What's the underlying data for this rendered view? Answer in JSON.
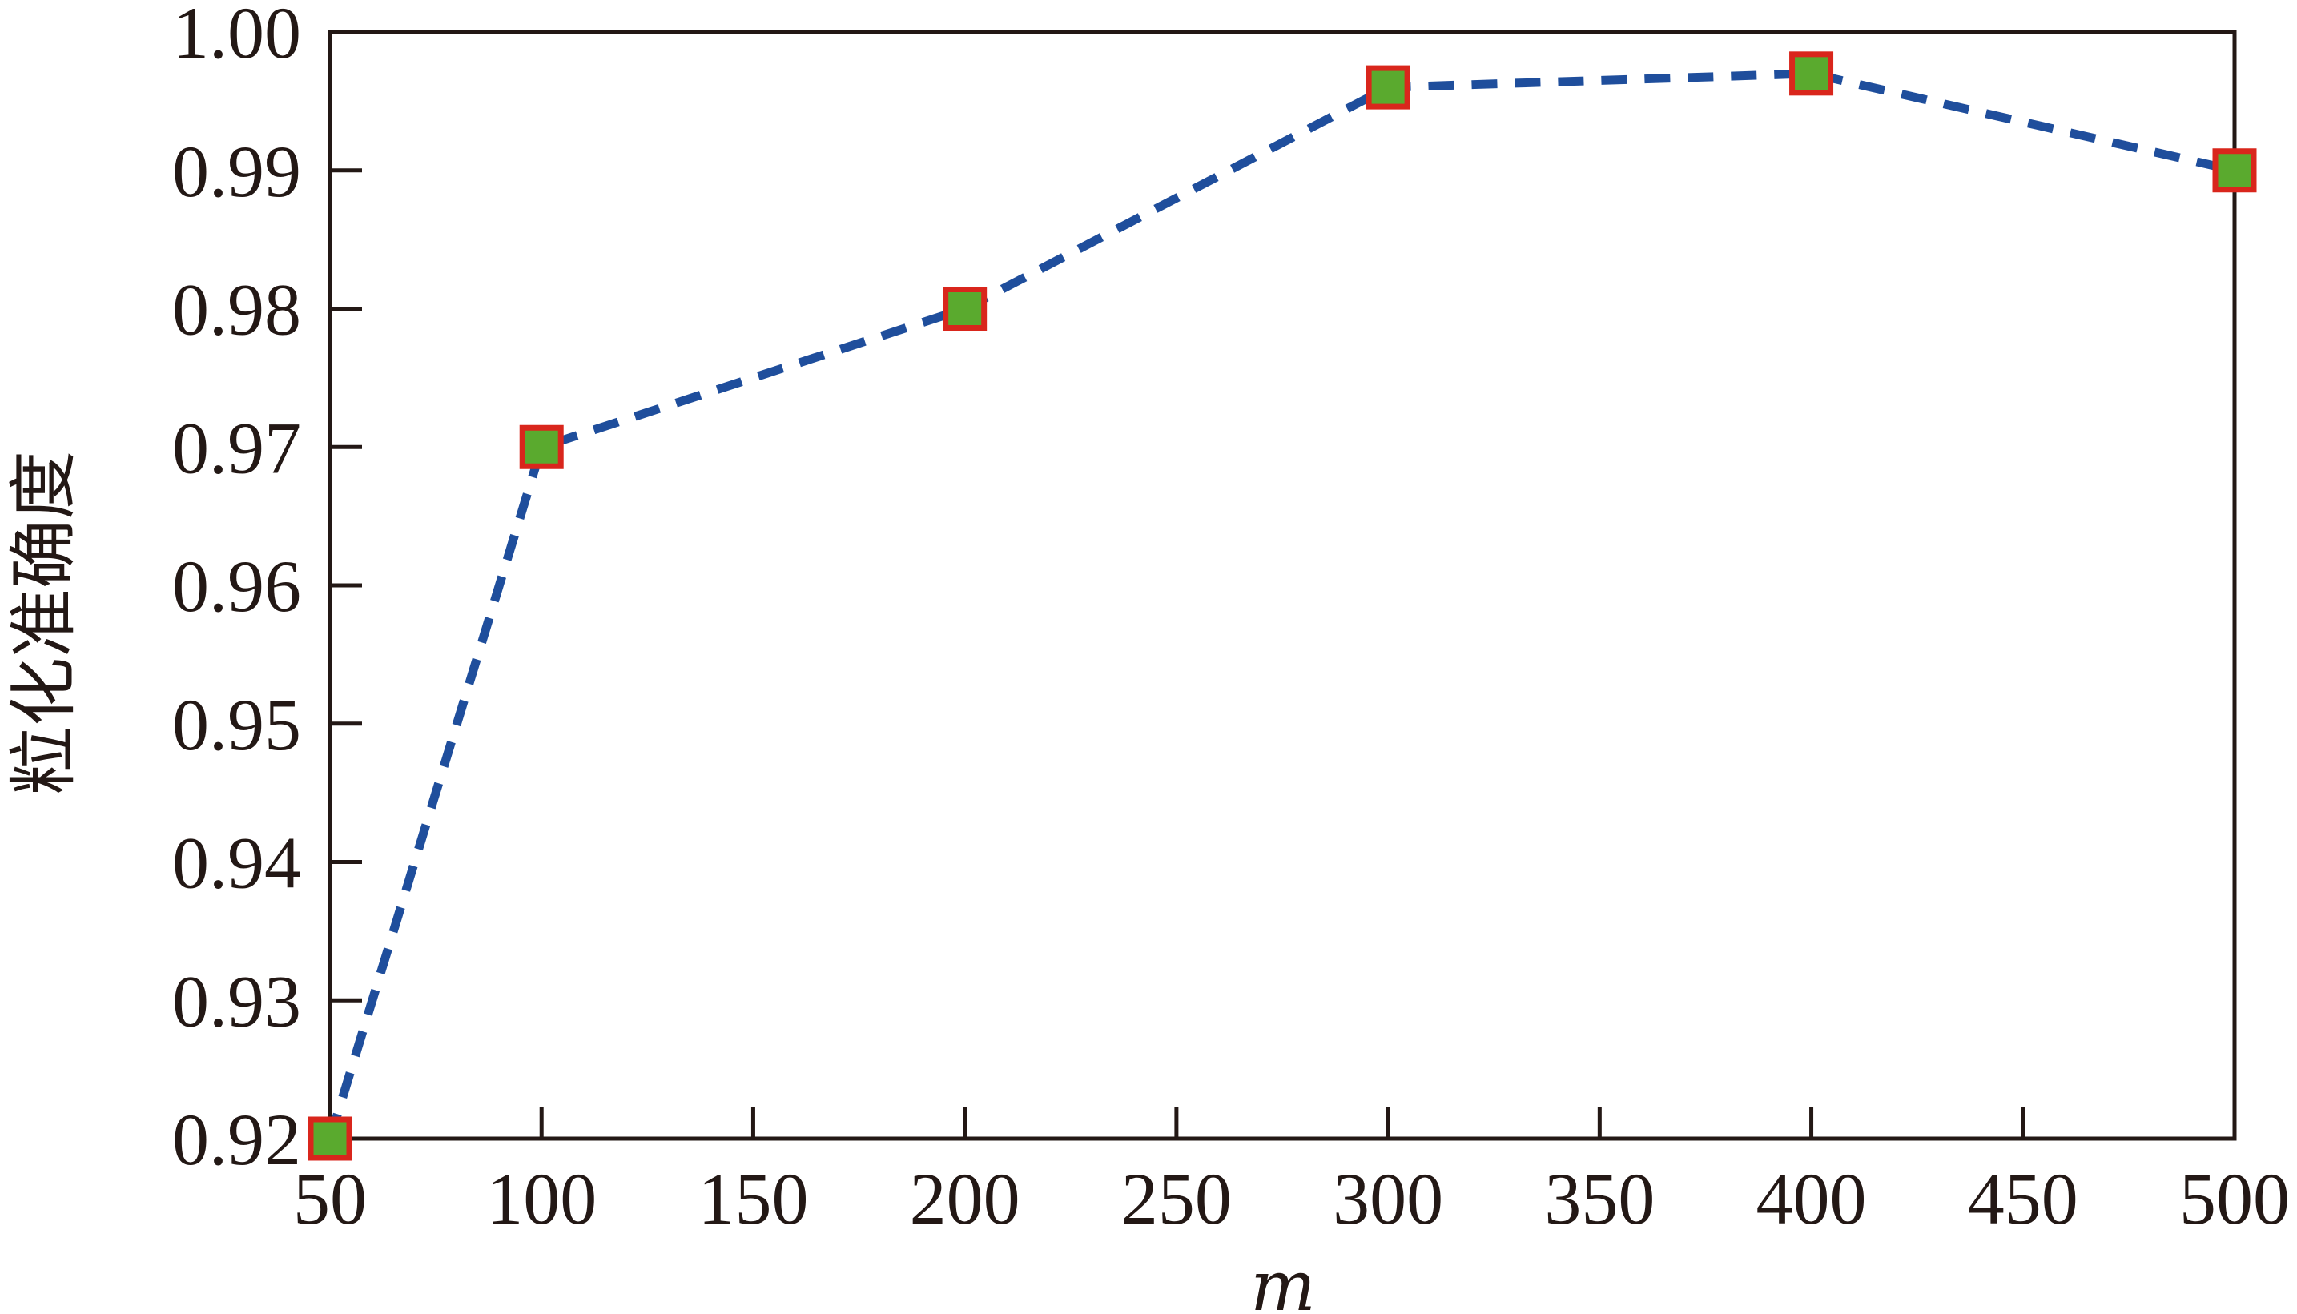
{
  "chart_data": {
    "type": "line",
    "title": "",
    "xlabel": "m",
    "ylabel": "粒化准确度",
    "x": [
      50,
      100,
      200,
      300,
      400,
      500
    ],
    "series": [
      {
        "values": [
          0.92,
          0.97,
          0.98,
          0.996,
          0.997,
          0.99
        ]
      }
    ],
    "xlim": [
      50,
      500
    ],
    "ylim": [
      0.92,
      1.0
    ],
    "xticks": [
      50,
      100,
      150,
      200,
      250,
      300,
      350,
      400,
      450,
      500
    ],
    "yticks": [
      0.92,
      0.93,
      0.94,
      0.95,
      0.96,
      0.97,
      0.98,
      0.99,
      1.0
    ],
    "xtick_labels": [
      "50",
      "100",
      "150",
      "200",
      "250",
      "300",
      "350",
      "400",
      "450",
      "500"
    ],
    "ytick_labels": [
      "0.92",
      "0.93",
      "0.94",
      "0.95",
      "0.96",
      "0.97",
      "0.98",
      "0.99",
      "1.00"
    ],
    "grid": false,
    "legend": "none",
    "colors": {
      "line": "#1f4e9c",
      "marker_fill": "#5aaa2e",
      "marker_edge": "#d9261c",
      "axis": "#231815"
    },
    "line_style": "dashed",
    "marker": "square"
  }
}
